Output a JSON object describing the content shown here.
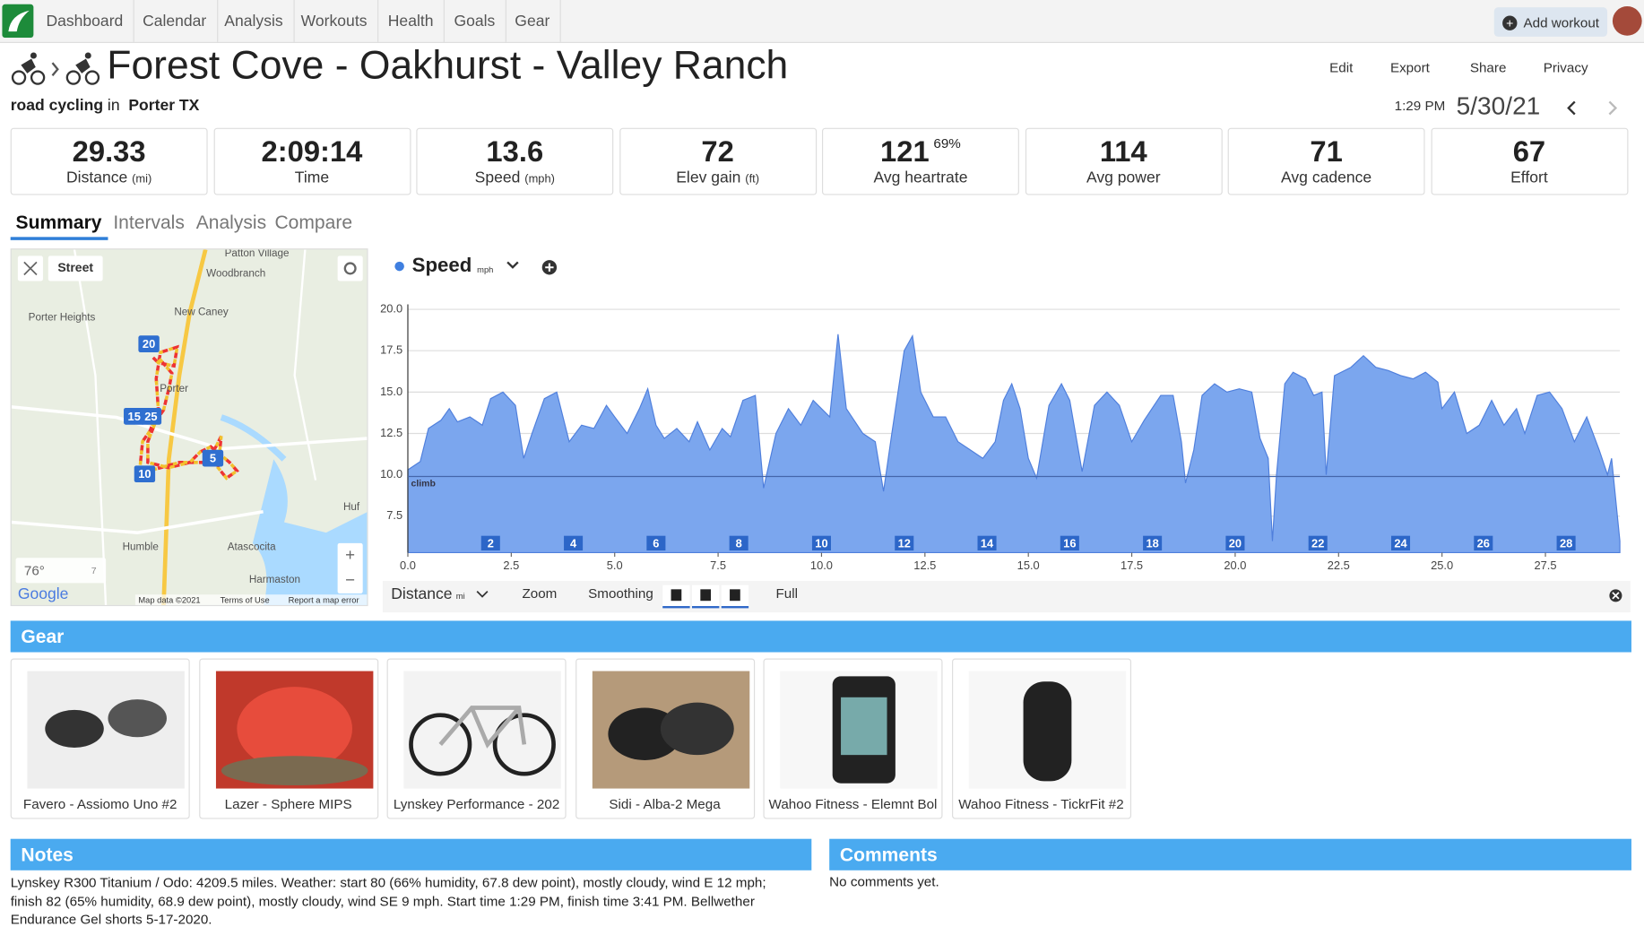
{
  "nav": {
    "items": [
      "Dashboard",
      "Calendar",
      "Analysis",
      "Workouts",
      "Health",
      "Goals",
      "Gear"
    ],
    "add_workout": "Add workout"
  },
  "header": {
    "title": "Forest Cove - Oakhurst - Valley Ranch",
    "activity": "road cycling",
    "in": "in",
    "location": "Porter TX",
    "actions": [
      "Edit",
      "Export",
      "Share",
      "Privacy"
    ],
    "time": "1:29 PM",
    "date": "5/30/21"
  },
  "stats": [
    {
      "value": 29.33,
      "label": "Distance",
      "unit": "(mi)"
    },
    {
      "value": "2:09:14",
      "label": "Time"
    },
    {
      "value": 13.6,
      "label": "Speed",
      "unit": "(mph)"
    },
    {
      "value": 72,
      "label": "Elev gain",
      "unit": "(ft)"
    },
    {
      "value": 121,
      "extra": "69%",
      "label": "Avg heartrate"
    },
    {
      "value": 114,
      "label": "Avg power"
    },
    {
      "value": 71,
      "label": "Avg cadence"
    },
    {
      "value": 67,
      "label": "Effort"
    }
  ],
  "tabs": [
    "Summary",
    "Intervals",
    "Analysis",
    "Compare"
  ],
  "map": {
    "layer": "Street",
    "places": [
      "Patton Village",
      "Woodbranch",
      "New Caney",
      "Porter Heights",
      "Porter",
      "Humble",
      "Atascocita",
      "Harmaston",
      "Huf"
    ],
    "markers": [
      "20",
      "15",
      "25",
      "5",
      "10"
    ],
    "temperature": "76°",
    "wind": "7",
    "brand": "Google",
    "attribution": [
      "Map data ©2021",
      "Terms of Use",
      "Report a map error"
    ]
  },
  "chart_data": {
    "type": "area",
    "y_unit": "mph",
    "x_label": "Distance",
    "x_unit": "mi",
    "tools": [
      "Zoom",
      "Smoothing",
      "Full"
    ],
    "x": [
      0,
      0.3,
      0.5,
      0.8,
      1.0,
      1.2,
      1.5,
      1.8,
      2.0,
      2.3,
      2.6,
      2.8,
      3.0,
      3.3,
      3.6,
      3.9,
      4.2,
      4.5,
      4.8,
      5.0,
      5.3,
      5.6,
      5.8,
      6.0,
      6.2,
      6.5,
      6.8,
      7.0,
      7.3,
      7.6,
      7.8,
      8.1,
      8.4,
      8.6,
      8.9,
      9.2,
      9.5,
      9.8,
      10.2,
      10.4,
      10.6,
      11.0,
      11.3,
      11.5,
      11.7,
      12.0,
      12.2,
      12.4,
      12.7,
      13.0,
      13.3,
      13.6,
      13.9,
      14.2,
      14.4,
      14.6,
      14.8,
      15.0,
      15.2,
      15.5,
      15.8,
      16.0,
      16.3,
      16.6,
      16.9,
      17.2,
      17.5,
      17.8,
      18.2,
      18.5,
      18.7,
      18.8,
      19.0,
      19.2,
      19.5,
      19.8,
      20.1,
      20.4,
      20.6,
      20.8,
      20.9,
      21.0,
      21.2,
      21.4,
      21.7,
      21.9,
      22.1,
      22.2,
      22.4,
      22.8,
      23.1,
      23.4,
      23.7,
      24.0,
      24.3,
      24.6,
      24.9,
      25.0,
      25.3,
      25.6,
      25.9,
      26.2,
      26.5,
      26.8,
      27.0,
      27.3,
      27.6,
      27.9,
      28.2,
      28.5,
      28.8,
      29.0,
      29.1,
      29.3
    ],
    "series": [
      {
        "name": "Speed",
        "color": "#7ba6ee",
        "values": [
          10.3,
          10.8,
          12.8,
          13.3,
          14.0,
          13.2,
          13.5,
          13.0,
          14.6,
          15.0,
          14.2,
          11.0,
          12.5,
          14.6,
          15.0,
          12.0,
          13.0,
          12.8,
          14.2,
          13.5,
          12.5,
          14.0,
          15.2,
          13.0,
          12.2,
          12.8,
          12.0,
          13.2,
          11.5,
          12.8,
          12.3,
          14.5,
          14.8,
          9.2,
          12.5,
          14.0,
          13.0,
          14.5,
          13.5,
          18.5,
          14.0,
          12.5,
          12.0,
          9.0,
          12.5,
          17.5,
          18.4,
          15.0,
          13.5,
          13.5,
          12.0,
          11.5,
          11.0,
          12.0,
          14.5,
          15.5,
          14.0,
          11.0,
          9.8,
          14.2,
          15.5,
          14.5,
          10.2,
          14.2,
          15.0,
          14.2,
          12.0,
          13.3,
          14.8,
          14.8,
          12.0,
          9.5,
          11.5,
          14.8,
          15.5,
          15.0,
          15.2,
          15.0,
          12.2,
          11.0,
          6.0,
          10.0,
          15.5,
          16.2,
          15.8,
          14.8,
          15.0,
          10.0,
          16.0,
          16.5,
          17.2,
          16.5,
          16.3,
          16.0,
          15.8,
          16.2,
          15.6,
          14.0,
          15.0,
          12.5,
          13.0,
          14.5,
          13.0,
          14.0,
          12.5,
          14.8,
          15.0,
          14.0,
          12.0,
          13.5,
          11.5,
          10.0,
          11.0,
          6.0
        ]
      }
    ],
    "xlim": [
      0,
      29.3
    ],
    "ylim": [
      5.3,
      20.3
    ],
    "xticks": [
      {
        "value": 0,
        "label": "0.0"
      },
      2.5,
      {
        "value": 5,
        "label": "5.0"
      },
      7.5,
      {
        "value": 10,
        "label": "10.0"
      },
      12.5,
      {
        "value": 15,
        "label": "15.0"
      },
      17.5,
      {
        "value": 20,
        "label": "20.0"
      },
      22.5,
      {
        "value": 25,
        "label": "25.0"
      },
      27.5
    ],
    "yticks": [
      7.5,
      {
        "value": 10,
        "label": "10.0"
      },
      12.5,
      {
        "value": 15,
        "label": "15.0"
      },
      17.5,
      {
        "value": 20,
        "label": "20.0"
      }
    ],
    "grid": true,
    "markers": [
      2,
      4,
      6,
      8,
      10,
      12,
      14,
      16,
      18,
      20,
      22,
      24,
      26,
      28
    ],
    "climb": {
      "label": "climb",
      "value": 9.9
    }
  },
  "gear": {
    "title": "Gear",
    "items": [
      "Favero - Assiomo Uno #2",
      "Lazer - Sphere MIPS",
      "Lynskey Performance - 202",
      "Sidi - Alba-2 Mega",
      "Wahoo Fitness - Elemnt Bol",
      "Wahoo Fitness - TickrFit #2"
    ]
  },
  "notes": {
    "title": "Notes",
    "text": "Lynskey R300 Titanium / Odo: 4209.5 miles. Weather: start 80 (66% humidity, 67.8 dew point), mostly cloudy, wind E 12 mph; finish 82 (65% humidity, 68.9 dew point), mostly cloudy, wind SE 9 mph. Start time 1:29 PM, finish time 3:41 PM. Bellwether Endurance Gel shorts 5-17-2020."
  },
  "comments": {
    "title": "Comments",
    "text": "No comments yet."
  }
}
